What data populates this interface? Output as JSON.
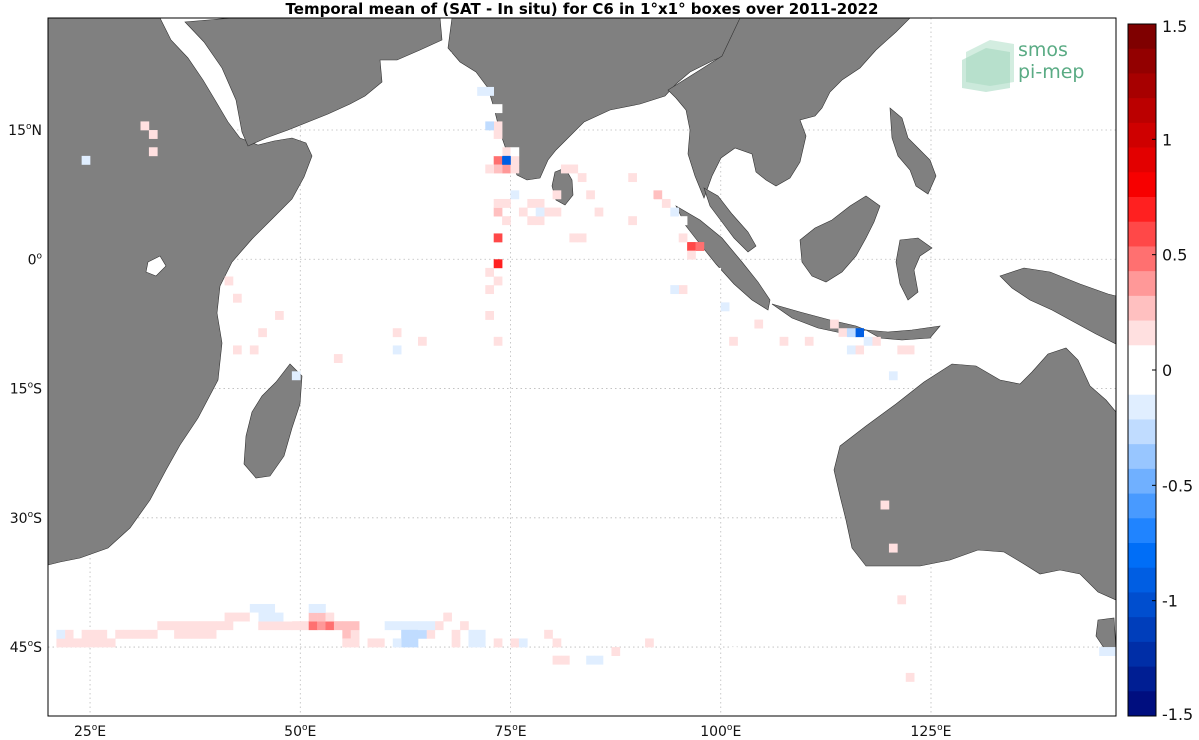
{
  "title": "Temporal mean of (SAT - In situ) for C6 in 1°x1° boxes over 2011-2022",
  "logo": {
    "line1": "smos",
    "line2": "pi-mep",
    "color": "#5aab84"
  },
  "map": {
    "lon_range": [
      20,
      147
    ],
    "lat_range": [
      -53,
      28
    ],
    "land_color": "#808080",
    "ocean_color": "#ffffff",
    "lon_ticks": [
      {
        "value": 25,
        "deg": "25",
        "hemi": "E"
      },
      {
        "value": 50,
        "deg": "50",
        "hemi": "E"
      },
      {
        "value": 75,
        "deg": "75",
        "hemi": "E"
      },
      {
        "value": 100,
        "deg": "100",
        "hemi": "E"
      },
      {
        "value": 125,
        "deg": "125",
        "hemi": "E"
      }
    ],
    "lat_ticks": [
      {
        "value": 15,
        "deg": "15",
        "hemi": "N"
      },
      {
        "value": 0,
        "deg": "0",
        "hemi": ""
      },
      {
        "value": -15,
        "deg": "15",
        "hemi": "S"
      },
      {
        "value": -30,
        "deg": "30",
        "hemi": "S"
      },
      {
        "value": -45,
        "deg": "45",
        "hemi": "S"
      }
    ]
  },
  "colorbar": {
    "range": [
      -1.5,
      1.5
    ],
    "ticks": [
      {
        "value": 1.5,
        "label": "1.5"
      },
      {
        "value": 1,
        "label": "1"
      },
      {
        "value": 0.5,
        "label": "0.5"
      },
      {
        "value": 0,
        "label": "0"
      },
      {
        "value": -0.5,
        "label": "-0.5"
      },
      {
        "value": -1,
        "label": "-1"
      },
      {
        "value": -1.5,
        "label": "-1.5"
      }
    ],
    "colors_top_to_bottom": [
      "#7f0000",
      "#930000",
      "#a70000",
      "#bb0000",
      "#cf0000",
      "#e30000",
      "#f70000",
      "#ff2020",
      "#ff4848",
      "#ff7070",
      "#ff9898",
      "#ffc0c0",
      "#ffe0e0",
      "#ffffff",
      "#ffffff",
      "#e0eeff",
      "#c0dcff",
      "#98c6ff",
      "#70b0ff",
      "#489aff",
      "#2084ff",
      "#006ef7",
      "#005ee3",
      "#004ecf",
      "#003ebb",
      "#002ea7",
      "#001e93",
      "#000e7f"
    ]
  },
  "chart_data": {
    "type": "heatmap",
    "title": "Temporal mean of (SAT - In situ) for C6 in 1°x1° boxes over 2011-2022",
    "cell_size_deg": 1,
    "cells": [
      [
        73.5,
        -0.5,
        0.65
      ],
      [
        74.5,
        11.5,
        0.55
      ],
      [
        73.5,
        11.5,
        0.45
      ],
      [
        74.5,
        10.5,
        0.4
      ],
      [
        73.5,
        10.5,
        0.3
      ],
      [
        72.5,
        10.5,
        0.2
      ],
      [
        75.5,
        10.5,
        0.2
      ],
      [
        74.5,
        12.5,
        0.2
      ],
      [
        73.5,
        14.5,
        0.2
      ],
      [
        73.5,
        15.5,
        0.15
      ],
      [
        72.5,
        17.5,
        0.1
      ],
      [
        72.5,
        4.5,
        0.1
      ],
      [
        73.5,
        5.5,
        0.3
      ],
      [
        73.5,
        6.5,
        0.2
      ],
      [
        73.5,
        2.5,
        0.55
      ],
      [
        74.5,
        4.5,
        0.2
      ],
      [
        74.5,
        6.5,
        0.15
      ],
      [
        73.5,
        -2.5,
        0.2
      ],
      [
        72.5,
        -1.5,
        0.2
      ],
      [
        72.5,
        -3.5,
        0.15
      ],
      [
        72.5,
        -6.5,
        0.2
      ],
      [
        73.5,
        -9.5,
        0.2
      ],
      [
        75.5,
        11.5,
        0.2
      ],
      [
        77.5,
        6.5,
        0.2
      ],
      [
        78.5,
        6.5,
        0.2
      ],
      [
        79.5,
        5.5,
        0.2
      ],
      [
        80.5,
        5.5,
        0.15
      ],
      [
        80.5,
        7.5,
        0.15
      ],
      [
        81.5,
        10.5,
        0.2
      ],
      [
        82.5,
        10.5,
        0.15
      ],
      [
        83.5,
        9.5,
        0.2
      ],
      [
        84.5,
        7.5,
        0.2
      ],
      [
        85.5,
        5.5,
        0.15
      ],
      [
        82.5,
        2.5,
        0.2
      ],
      [
        83.5,
        2.5,
        0.2
      ],
      [
        78.5,
        4.5,
        0.15
      ],
      [
        76.5,
        5.5,
        0.2
      ],
      [
        77.5,
        4.5,
        0.15
      ],
      [
        87.5,
        10.5,
        0.1
      ],
      [
        89.5,
        9.5,
        0.15
      ],
      [
        89.5,
        4.5,
        0.15
      ],
      [
        92.5,
        7.5,
        0.3
      ],
      [
        93.5,
        6.5,
        0.2
      ],
      [
        96.5,
        1.5,
        0.55
      ],
      [
        97.5,
        1.5,
        0.45
      ],
      [
        95.5,
        2.5,
        0.2
      ],
      [
        96.5,
        0.5,
        0.2
      ],
      [
        95.5,
        -3.5,
        0.15
      ],
      [
        99.5,
        -1.5,
        0.1
      ],
      [
        98.5,
        -6.5,
        0.1
      ],
      [
        104.5,
        -7.5,
        0.2
      ],
      [
        107.5,
        -9.5,
        0.2
      ],
      [
        110.5,
        -9.5,
        0.15
      ],
      [
        113.5,
        -7.5,
        0.15
      ],
      [
        114.5,
        -8.5,
        0.2
      ],
      [
        116.5,
        -10.5,
        0.2
      ],
      [
        118.5,
        -9.5,
        0.15
      ],
      [
        121.5,
        -10.5,
        0.2
      ],
      [
        122.5,
        -10.5,
        0.15
      ],
      [
        119.5,
        -11.5,
        0.1
      ],
      [
        101.5,
        -9.5,
        0.15
      ],
      [
        47.5,
        -6.5,
        0.2
      ],
      [
        45.5,
        -8.5,
        0.2
      ],
      [
        42.5,
        -10.5,
        0.15
      ],
      [
        44.5,
        -10.5,
        0.2
      ],
      [
        42.5,
        -4.5,
        0.15
      ],
      [
        41.5,
        -2.5,
        0.15
      ],
      [
        31.5,
        15.5,
        0.2
      ],
      [
        32.5,
        14.5,
        0.15
      ],
      [
        32.5,
        12.5,
        0.2
      ],
      [
        61.5,
        -8.5,
        0.2
      ],
      [
        64.5,
        -9.5,
        0.15
      ],
      [
        54.5,
        -11.5,
        0.15
      ],
      [
        61.5,
        -10.5,
        -0.2
      ],
      [
        63.5,
        -3.5,
        -0.1
      ],
      [
        56.5,
        10.5,
        -0.1
      ],
      [
        57.5,
        10.5,
        -0.1
      ],
      [
        56.5,
        11.5,
        -0.1
      ],
      [
        57.5,
        11.5,
        -0.1
      ],
      [
        53.5,
        4.5,
        -0.1
      ],
      [
        52.5,
        12.5,
        -0.1
      ],
      [
        24.5,
        11.5,
        -0.15
      ],
      [
        49.5,
        -13.5,
        -0.15
      ],
      [
        43.5,
        -6.5,
        -0.1
      ],
      [
        74.5,
        11.5,
        -0.9
      ],
      [
        73.5,
        12.5,
        -0.1
      ],
      [
        75.5,
        12.5,
        -0.1
      ],
      [
        71.5,
        19.5,
        -0.15
      ],
      [
        72.5,
        19.5,
        -0.15
      ],
      [
        70.5,
        17.5,
        -0.1
      ],
      [
        73.5,
        17.5,
        -0.1
      ],
      [
        70.5,
        19.5,
        -0.1
      ],
      [
        67.5,
        23.5,
        -0.1
      ],
      [
        72.5,
        15.5,
        -0.3
      ],
      [
        71.5,
        14.5,
        -0.1
      ],
      [
        75.5,
        7.5,
        -0.15
      ],
      [
        78.5,
        5.5,
        -0.15
      ],
      [
        69.5,
        5.5,
        -0.1
      ],
      [
        67.5,
        6.5,
        -0.1
      ],
      [
        64.5,
        4.5,
        -0.1
      ],
      [
        57.5,
        5.5,
        -0.1
      ],
      [
        55.5,
        6.5,
        -0.1
      ],
      [
        88.5,
        11.5,
        -0.1
      ],
      [
        90.5,
        7.5,
        -0.1
      ],
      [
        91.5,
        6.5,
        -0.1
      ],
      [
        94.5,
        7.5,
        -0.1
      ],
      [
        94.5,
        5.5,
        -0.15
      ],
      [
        95.5,
        4.5,
        -0.1
      ],
      [
        92.5,
        -3.5,
        -0.1
      ],
      [
        94.5,
        -3.5,
        -0.15
      ],
      [
        100.5,
        -5.5,
        -0.15
      ],
      [
        116.5,
        -8.5,
        -0.9
      ],
      [
        115.5,
        -8.5,
        -0.3
      ],
      [
        117.5,
        -9.5,
        -0.2
      ],
      [
        120.5,
        -13.5,
        -0.15
      ],
      [
        115.5,
        -10.5,
        -0.15
      ],
      [
        114.5,
        -9.5,
        -0.1
      ],
      [
        101.5,
        -45.5,
        -0.1
      ],
      [
        145.5,
        -45.5,
        -0.15
      ],
      [
        146.5,
        -45.5,
        -0.15
      ],
      [
        84.5,
        -46.5,
        -0.15
      ],
      [
        85.5,
        -46.5,
        -0.15
      ],
      [
        41.5,
        -41.5,
        0.15
      ],
      [
        42.5,
        -41.5,
        0.2
      ],
      [
        43.5,
        -41.5,
        0.2
      ],
      [
        40.5,
        -42.5,
        0.2
      ],
      [
        41.5,
        -42.5,
        0.15
      ],
      [
        39.5,
        -42.5,
        0.2
      ],
      [
        38.5,
        -42.5,
        0.15
      ],
      [
        37.5,
        -42.5,
        0.2
      ],
      [
        36.5,
        -42.5,
        0.2
      ],
      [
        35.5,
        -42.5,
        0.2
      ],
      [
        34.5,
        -42.5,
        0.15
      ],
      [
        33.5,
        -42.5,
        0.2
      ],
      [
        32.5,
        -43.5,
        0.2
      ],
      [
        31.5,
        -43.5,
        0.15
      ],
      [
        30.5,
        -43.5,
        0.2
      ],
      [
        29.5,
        -43.5,
        0.15
      ],
      [
        28.5,
        -43.5,
        0.2
      ],
      [
        27.5,
        -44.5,
        0.2
      ],
      [
        26.5,
        -44.5,
        0.2
      ],
      [
        25.5,
        -44.5,
        0.15
      ],
      [
        24.5,
        -44.5,
        0.2
      ],
      [
        23.5,
        -44.5,
        0.15
      ],
      [
        22.5,
        -44.5,
        0.2
      ],
      [
        21.5,
        -44.5,
        0.15
      ],
      [
        22.5,
        -43.5,
        0.15
      ],
      [
        24.5,
        -43.5,
        0.2
      ],
      [
        25.5,
        -43.5,
        0.2
      ],
      [
        26.5,
        -43.5,
        0.15
      ],
      [
        35.5,
        -43.5,
        0.2
      ],
      [
        36.5,
        -43.5,
        0.2
      ],
      [
        37.5,
        -43.5,
        0.2
      ],
      [
        38.5,
        -43.5,
        0.2
      ],
      [
        39.5,
        -43.5,
        0.15
      ],
      [
        45.5,
        -42.5,
        0.2
      ],
      [
        46.5,
        -42.5,
        0.2
      ],
      [
        47.5,
        -42.5,
        0.2
      ],
      [
        48.5,
        -42.5,
        0.2
      ],
      [
        49.5,
        -42.5,
        0.15
      ],
      [
        50.5,
        -42.5,
        0.2
      ],
      [
        51.5,
        -42.5,
        0.45
      ],
      [
        52.5,
        -42.5,
        0.4
      ],
      [
        53.5,
        -42.5,
        0.45
      ],
      [
        54.5,
        -42.5,
        0.3
      ],
      [
        51.5,
        -41.5,
        0.3
      ],
      [
        52.5,
        -41.5,
        0.3
      ],
      [
        53.5,
        -41.5,
        0.2
      ],
      [
        55.5,
        -43.5,
        0.3
      ],
      [
        56.5,
        -43.5,
        0.2
      ],
      [
        55.5,
        -42.5,
        0.3
      ],
      [
        56.5,
        -42.5,
        0.3
      ],
      [
        55.5,
        -44.5,
        0.2
      ],
      [
        56.5,
        -44.5,
        0.2
      ],
      [
        66.5,
        -42.5,
        0.2
      ],
      [
        67.5,
        -41.5,
        0.2
      ],
      [
        68.5,
        -43.5,
        0.2
      ],
      [
        69.5,
        -42.5,
        0.2
      ],
      [
        68.5,
        -44.5,
        0.2
      ],
      [
        65.5,
        -43.5,
        0.15
      ],
      [
        58.5,
        -44.5,
        0.15
      ],
      [
        59.5,
        -44.5,
        0.15
      ],
      [
        73.5,
        -44.5,
        0.15
      ],
      [
        75.5,
        -44.5,
        0.15
      ],
      [
        79.5,
        -43.5,
        0.15
      ],
      [
        80.5,
        -44.5,
        0.15
      ],
      [
        80.5,
        -46.5,
        0.15
      ],
      [
        81.5,
        -46.5,
        0.15
      ],
      [
        87.5,
        -45.5,
        0.15
      ],
      [
        91.5,
        -44.5,
        0.15
      ],
      [
        122.5,
        -48.5,
        0.2
      ],
      [
        121.5,
        -39.5,
        0.2
      ],
      [
        120.5,
        -33.5,
        0.15
      ],
      [
        119.5,
        -28.5,
        0.15
      ],
      [
        44.5,
        -40.5,
        -0.15
      ],
      [
        45.5,
        -40.5,
        -0.2
      ],
      [
        46.5,
        -40.5,
        -0.2
      ],
      [
        47.5,
        -40.5,
        -0.1
      ],
      [
        45.5,
        -41.5,
        -0.15
      ],
      [
        46.5,
        -41.5,
        -0.15
      ],
      [
        44.5,
        -41.5,
        -0.1
      ],
      [
        47.5,
        -41.5,
        -0.15
      ],
      [
        48.5,
        -41.5,
        -0.1
      ],
      [
        51.5,
        -40.5,
        -0.2
      ],
      [
        52.5,
        -40.5,
        -0.2
      ],
      [
        54.5,
        -40.5,
        -0.1
      ],
      [
        38.5,
        -40.5,
        -0.1
      ],
      [
        39.5,
        -40.5,
        -0.1
      ],
      [
        21.5,
        -43.5,
        -0.15
      ],
      [
        61.5,
        -42.5,
        -0.2
      ],
      [
        62.5,
        -42.5,
        -0.2
      ],
      [
        63.5,
        -42.5,
        -0.2
      ],
      [
        62.5,
        -43.5,
        -0.25
      ],
      [
        63.5,
        -43.5,
        -0.25
      ],
      [
        64.5,
        -43.5,
        -0.25
      ],
      [
        62.5,
        -44.5,
        -0.25
      ],
      [
        63.5,
        -44.5,
        -0.25
      ],
      [
        61.5,
        -44.5,
        -0.15
      ],
      [
        60.5,
        -42.5,
        -0.15
      ],
      [
        64.5,
        -42.5,
        -0.15
      ],
      [
        65.5,
        -42.5,
        -0.2
      ],
      [
        70.5,
        -43.5,
        -0.2
      ],
      [
        71.5,
        -43.5,
        -0.2
      ],
      [
        70.5,
        -44.5,
        -0.2
      ],
      [
        71.5,
        -44.5,
        -0.2
      ],
      [
        58.5,
        -41.5,
        -0.1
      ],
      [
        59.5,
        -42.5,
        -0.1
      ],
      [
        76.5,
        -44.5,
        -0.15
      ],
      [
        66.5,
        -40.5,
        -0.1
      ]
    ]
  }
}
